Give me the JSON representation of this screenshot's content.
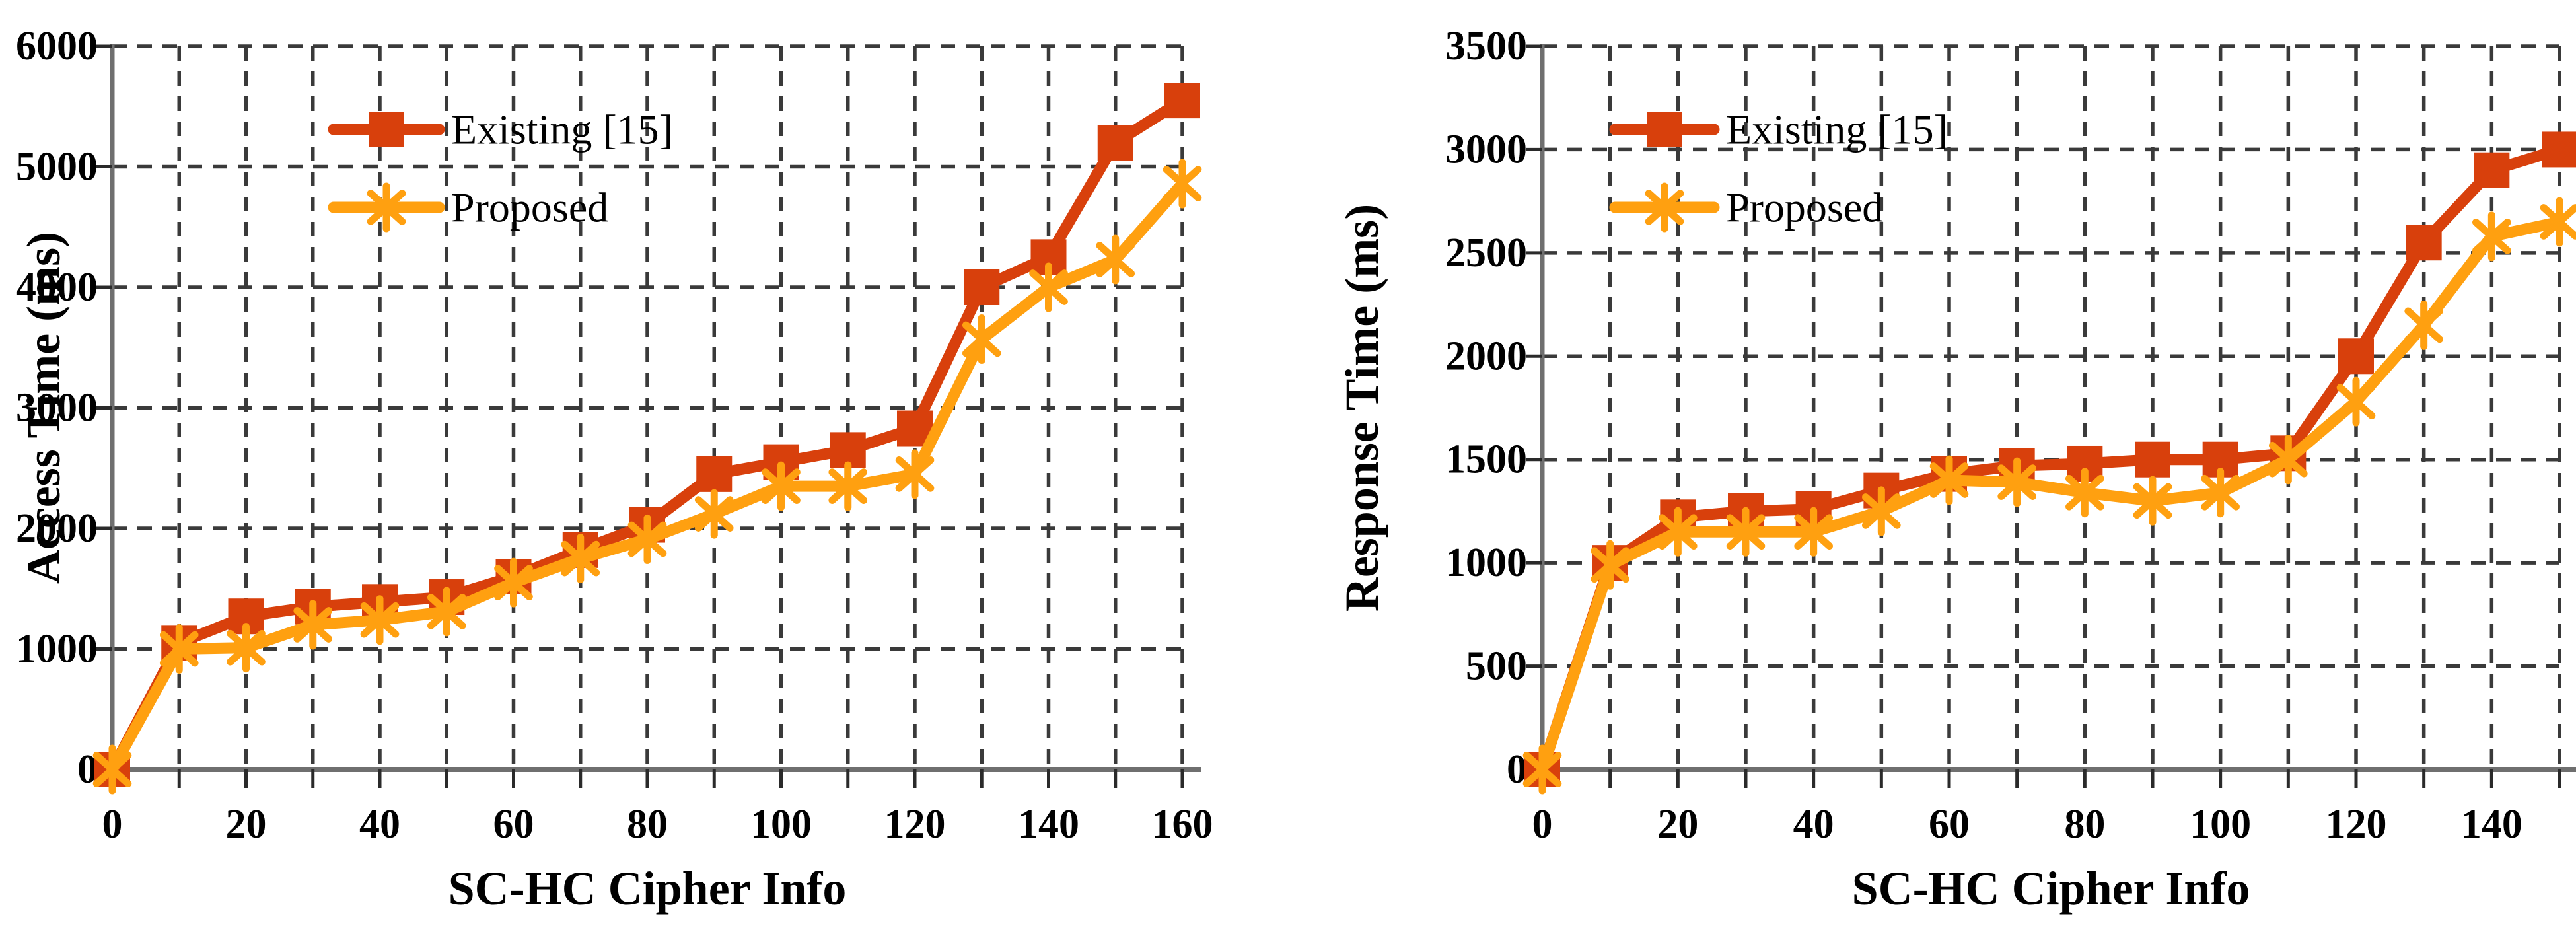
{
  "page": {
    "background": "#ffffff"
  },
  "appearance": {
    "grid_color": "#3a3a3a",
    "axis_color": "#6f6f6f",
    "tick_color": "#2a2a2a",
    "text_color": "#000000",
    "existing_color": "#d8400c",
    "proposed_color": "#ffa010"
  },
  "chart_data": [
    {
      "type": "line",
      "title": "",
      "xlabel": "SC-HC Cipher Info",
      "ylabel": "Access Time  (ms)",
      "x": [
        0,
        10,
        20,
        30,
        40,
        50,
        60,
        70,
        80,
        90,
        100,
        110,
        120,
        130,
        140,
        150,
        160
      ],
      "xticks": [
        0,
        20,
        40,
        60,
        80,
        100,
        120,
        140,
        160
      ],
      "xtick_labels": [
        "0",
        "20",
        "40",
        "60",
        "80",
        "100",
        "120",
        "140",
        "160"
      ],
      "xlim": [
        0,
        160
      ],
      "ylim": [
        0,
        6000
      ],
      "yticks": [
        0,
        1000,
        2000,
        3000,
        4000,
        5000,
        6000
      ],
      "ytick_labels": [
        "0",
        "1000",
        "2000",
        "3000",
        "4000",
        "5000",
        "6000"
      ],
      "grid": "dashed-both-axes",
      "legend_position": "inside-top-left",
      "series": [
        {
          "name": "Existing [15]",
          "marker": "square",
          "color": "#d8400c",
          "values": [
            0,
            1050,
            1270,
            1350,
            1390,
            1430,
            1600,
            1820,
            2030,
            2450,
            2550,
            2650,
            2830,
            4000,
            4250,
            5200,
            5550
          ]
        },
        {
          "name": "Proposed",
          "marker": "asterisk",
          "color": "#ffa010",
          "values": [
            0,
            1000,
            1010,
            1200,
            1240,
            1310,
            1550,
            1750,
            1910,
            2120,
            2350,
            2350,
            2450,
            3570,
            4000,
            4230,
            4860
          ]
        }
      ]
    },
    {
      "type": "line",
      "title": "",
      "xlabel": "SC-HC Cipher Info",
      "ylabel": "Response Time (ms)",
      "x": [
        0,
        10,
        20,
        30,
        40,
        50,
        60,
        70,
        80,
        90,
        100,
        110,
        120,
        130,
        140,
        150
      ],
      "xticks": [
        0,
        20,
        40,
        60,
        80,
        100,
        120,
        140
      ],
      "xtick_labels": [
        "0",
        "20",
        "40",
        "60",
        "80",
        "100",
        "120",
        "140"
      ],
      "xlim": [
        0,
        150
      ],
      "ylim": [
        0,
        3500
      ],
      "yticks": [
        0,
        500,
        1000,
        1500,
        2000,
        2500,
        3000,
        3500
      ],
      "ytick_labels": [
        "0",
        "500",
        "1000",
        "1500",
        "2000",
        "2500",
        "3000",
        "3500"
      ],
      "grid": "dashed-both-axes",
      "legend_position": "inside-top-left",
      "series": [
        {
          "name": "Existing [15]",
          "marker": "square",
          "color": "#d8400c",
          "values": [
            0,
            1000,
            1220,
            1250,
            1260,
            1350,
            1430,
            1470,
            1480,
            1500,
            1500,
            1530,
            2000,
            2550,
            2900,
            3000
          ]
        },
        {
          "name": "Proposed",
          "marker": "asterisk",
          "color": "#ffa010",
          "values": [
            0,
            990,
            1150,
            1150,
            1150,
            1250,
            1400,
            1390,
            1340,
            1300,
            1340,
            1500,
            1780,
            2150,
            2580,
            2650
          ]
        }
      ]
    }
  ]
}
